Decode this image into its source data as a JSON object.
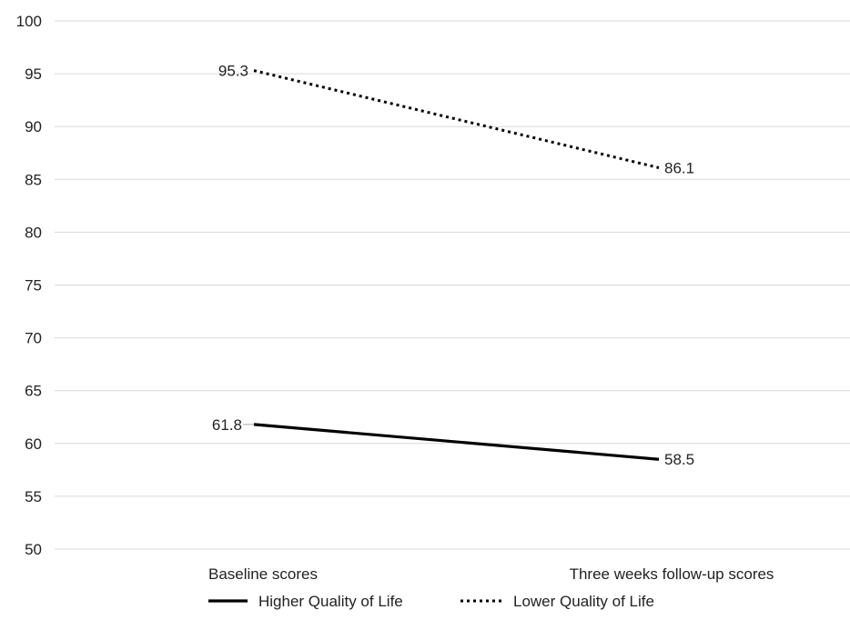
{
  "chart_data": {
    "type": "line",
    "title": "",
    "xlabel": "",
    "ylabel": "",
    "categories": [
      "Baseline scores",
      "Three weeks follow-up scores"
    ],
    "ylim": [
      50,
      100
    ],
    "yticks": [
      50,
      55,
      60,
      65,
      70,
      75,
      80,
      85,
      90,
      95,
      100
    ],
    "grid": true,
    "legend_position": "bottom",
    "series": [
      {
        "name": "Higher Quality of Life",
        "values": [
          61.8,
          58.5
        ],
        "labels": [
          "61.8",
          "58.5"
        ],
        "line_style": "solid",
        "color": "#000000"
      },
      {
        "name": "Lower Quality of Life",
        "values": [
          95.3,
          86.1
        ],
        "labels": [
          "95.3",
          "86.1"
        ],
        "line_style": "dotted",
        "color": "#000000"
      }
    ],
    "colors": {
      "grid": "#d9d9d9",
      "text": "#222222"
    }
  }
}
